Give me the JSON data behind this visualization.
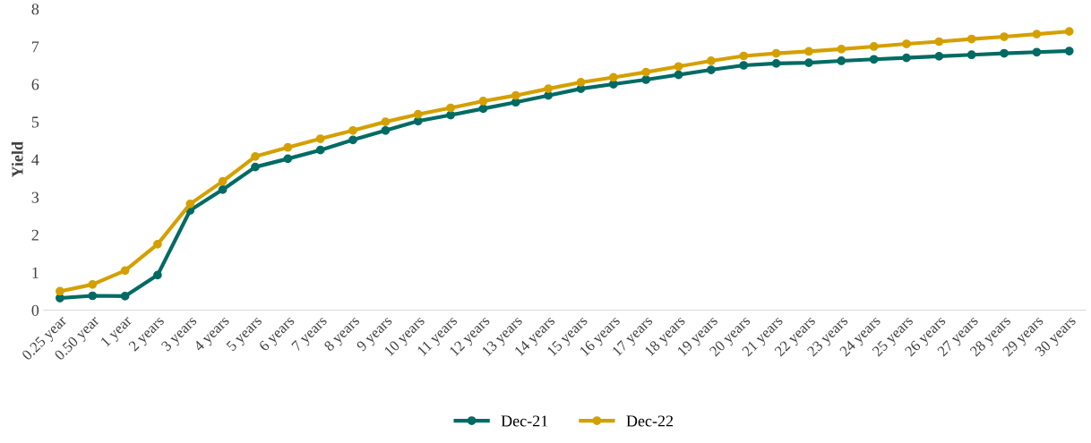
{
  "chart_data": {
    "type": "line",
    "ylabel": "Yield",
    "categories": [
      "0.25 year",
      "0.50 year",
      "1 year",
      "2 years",
      "3 years",
      "4 years",
      "5 years",
      "6 years",
      "7 years",
      "8 years",
      "9 years",
      "10 years",
      "11 years",
      "12 years",
      "13 years",
      "14 years",
      "15 years",
      "16 years",
      "17 years",
      "18 years",
      "19 years",
      "20 years",
      "21 years",
      "22 years",
      "23 years",
      "24 years",
      "25 years",
      "26 years",
      "27 years",
      "28 years",
      "29 years",
      "30 years"
    ],
    "series": [
      {
        "name": "Dec-21",
        "color": "#006b63",
        "values": [
          0.32,
          0.38,
          0.37,
          0.93,
          2.65,
          3.2,
          3.8,
          4.02,
          4.25,
          4.52,
          4.77,
          5.02,
          5.18,
          5.35,
          5.52,
          5.7,
          5.88,
          6.0,
          6.12,
          6.25,
          6.38,
          6.5,
          6.55,
          6.57,
          6.62,
          6.66,
          6.7,
          6.74,
          6.78,
          6.82,
          6.85,
          6.88
        ]
      },
      {
        "name": "Dec-22",
        "color": "#d4a000",
        "values": [
          0.5,
          0.68,
          1.05,
          1.75,
          2.82,
          3.42,
          4.08,
          4.32,
          4.55,
          4.77,
          5.0,
          5.2,
          5.37,
          5.55,
          5.7,
          5.88,
          6.05,
          6.18,
          6.32,
          6.47,
          6.62,
          6.75,
          6.82,
          6.87,
          6.93,
          7.0,
          7.07,
          7.13,
          7.2,
          7.26,
          7.33,
          7.4
        ]
      }
    ],
    "ylim": [
      0,
      8
    ],
    "yticks": [
      0,
      1,
      2,
      3,
      4,
      5,
      6,
      7,
      8
    ],
    "grid": false,
    "legend": "bottom",
    "marker": "circle",
    "line_style": "solid"
  }
}
